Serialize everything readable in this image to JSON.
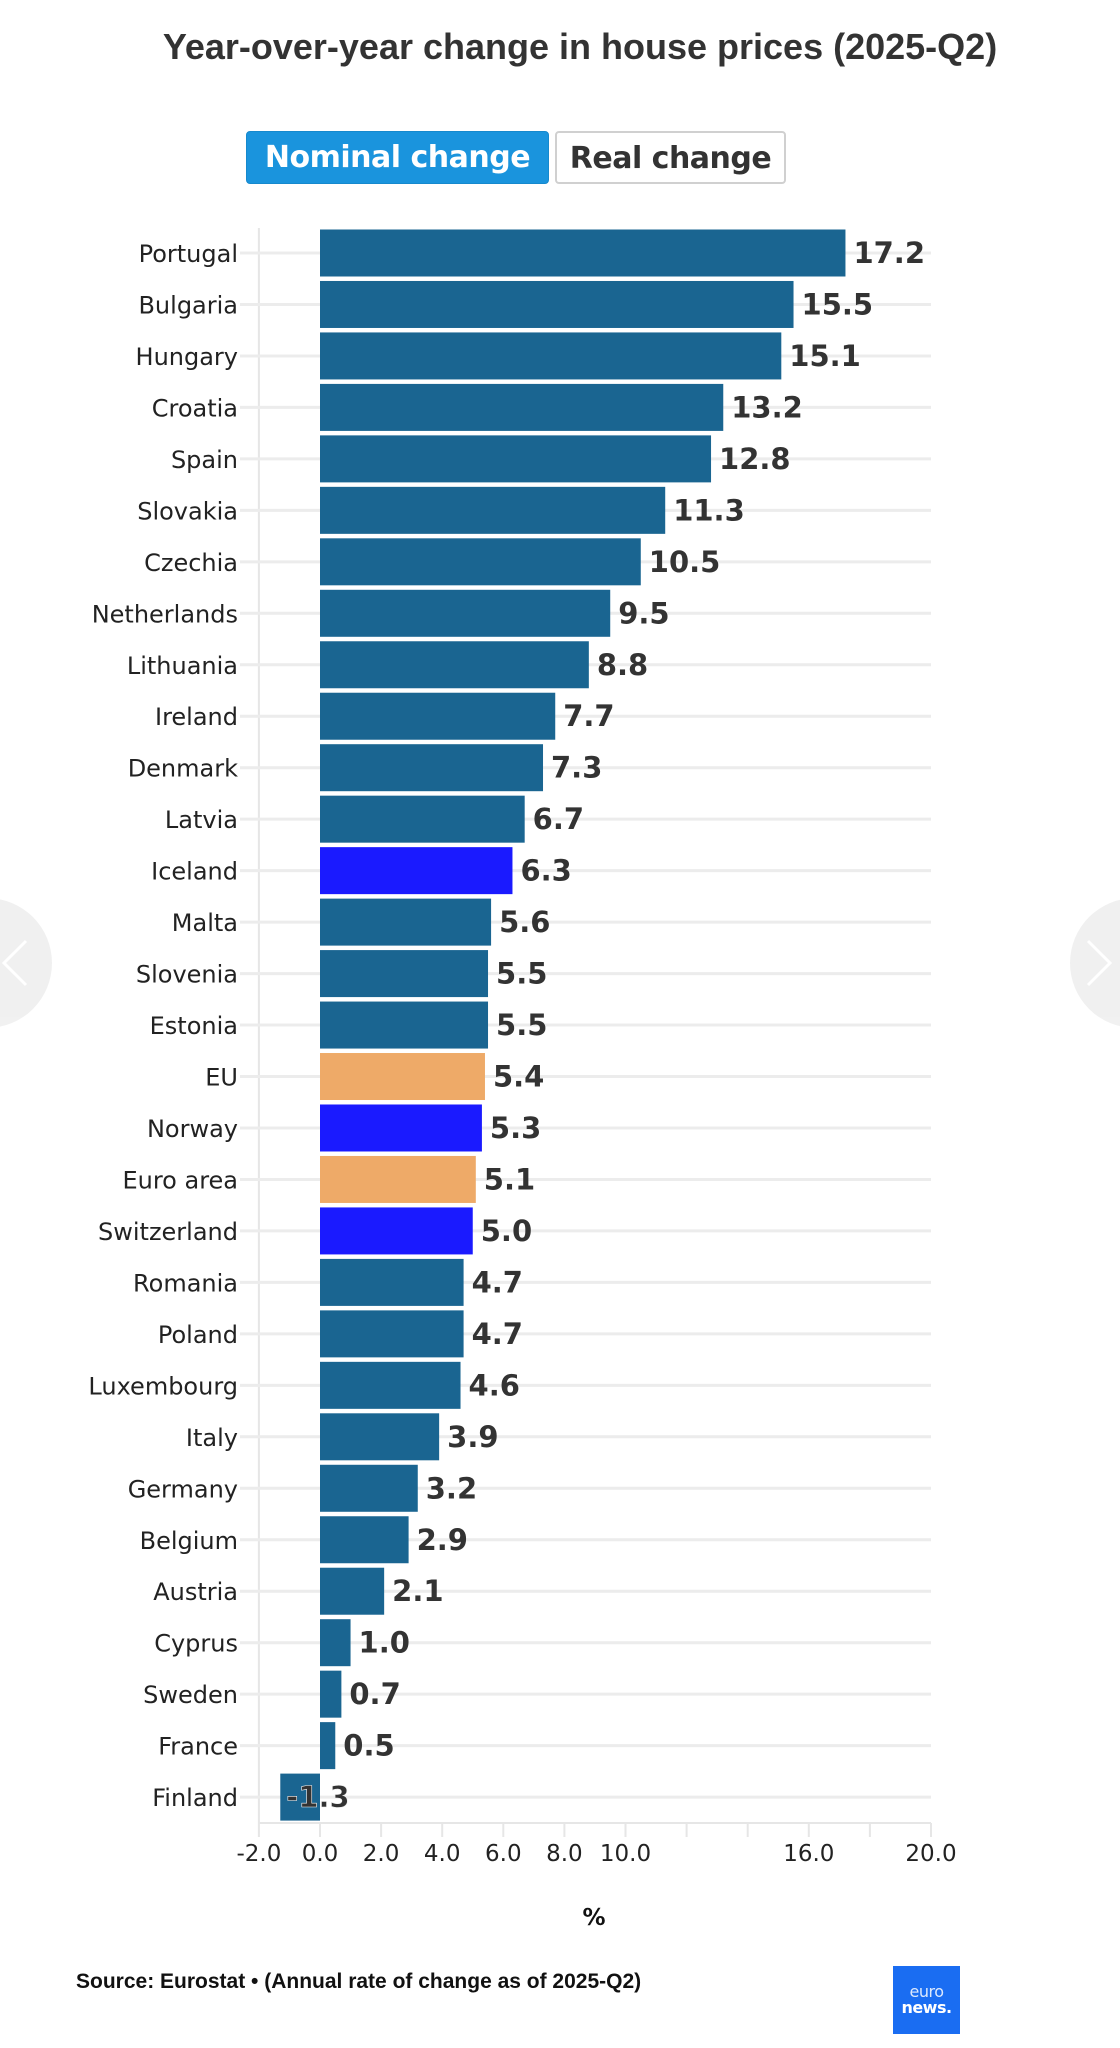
{
  "header": {
    "title": "Year-over-year change in house prices (2025-Q2)"
  },
  "toggle": {
    "options": [
      {
        "label": "Nominal change",
        "active": true
      },
      {
        "label": "Real change",
        "active": false
      }
    ]
  },
  "colors": {
    "default": "#1a6591",
    "efta": "#1a1aff",
    "aggregate": "#eeaa68",
    "active_button": "#1a94dd"
  },
  "chart_data": {
    "type": "bar",
    "orientation": "horizontal",
    "title": "Year-over-year change in house prices (2025-Q2)",
    "xlabel": "%",
    "ylabel": "",
    "xlim": [
      -2,
      20
    ],
    "grid": true,
    "xticks": [
      -2,
      0,
      2,
      4,
      6,
      8,
      10,
      12,
      14,
      16,
      18,
      20
    ],
    "xtick_labels": [
      "-2.0",
      "0.0",
      "2.0",
      "4.0",
      "6.0",
      "8.0",
      "10.0",
      "",
      "",
      "16.0",
      "",
      "20.0"
    ],
    "categories": [
      "Portugal",
      "Bulgaria",
      "Hungary",
      "Croatia",
      "Spain",
      "Slovakia",
      "Czechia",
      "Netherlands",
      "Lithuania",
      "Ireland",
      "Denmark",
      "Latvia",
      "Iceland",
      "Malta",
      "Slovenia",
      "Estonia",
      "EU",
      "Norway",
      "Euro area",
      "Switzerland",
      "Romania",
      "Poland",
      "Luxembourg",
      "Italy",
      "Germany",
      "Belgium",
      "Austria",
      "Cyprus",
      "Sweden",
      "France",
      "Finland"
    ],
    "values": [
      17.2,
      15.5,
      15.1,
      13.2,
      12.8,
      11.3,
      10.5,
      9.5,
      8.8,
      7.7,
      7.3,
      6.7,
      6.3,
      5.6,
      5.5,
      5.5,
      5.4,
      5.3,
      5.1,
      5.0,
      4.7,
      4.7,
      4.6,
      3.9,
      3.2,
      2.9,
      2.1,
      1.0,
      0.7,
      0.5,
      -1.3
    ],
    "value_labels": [
      "17.2",
      "15.5",
      "15.1",
      "13.2",
      "12.8",
      "11.3",
      "10.5",
      "9.5",
      "8.8",
      "7.7",
      "7.3",
      "6.7",
      "6.3",
      "5.6",
      "5.5",
      "5.5",
      "5.4",
      "5.3",
      "5.1",
      "5.0",
      "4.7",
      "4.7",
      "4.6",
      "3.9",
      "3.2",
      "2.9",
      "2.1",
      "1.0",
      "0.7",
      "0.5",
      "-1.3"
    ],
    "groups": [
      "default",
      "default",
      "default",
      "default",
      "default",
      "default",
      "default",
      "default",
      "default",
      "default",
      "default",
      "default",
      "efta",
      "default",
      "default",
      "default",
      "aggregate",
      "efta",
      "aggregate",
      "efta",
      "default",
      "default",
      "default",
      "default",
      "default",
      "default",
      "default",
      "default",
      "default",
      "default",
      "default"
    ]
  },
  "footer": {
    "source": "Source: Eurostat • (Annual rate of change as of 2025-Q2)",
    "logo_line1": "euro",
    "logo_line2": "news."
  },
  "navigation": {
    "prev_icon": "chevron-left-icon",
    "next_icon": "chevron-right-icon"
  }
}
